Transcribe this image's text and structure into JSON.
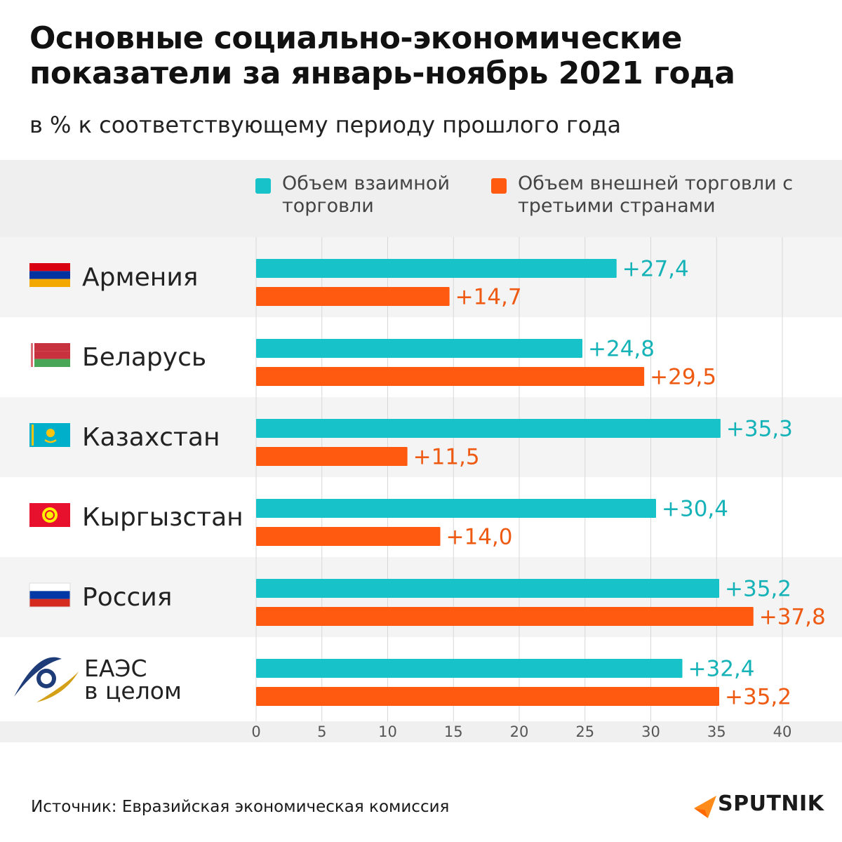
{
  "title": "Основные социально-экономические показатели за январь-ноябрь 2021 года",
  "subtitle": "в % к соответствующему периоду прошлого года",
  "legend": {
    "mutual": "Объем взаимной торговли",
    "external": "Объем внешней торговли с третьими странами"
  },
  "colors": {
    "mutual": "#17c3c8",
    "external": "#ff5a0f",
    "band_light": "#f4f4f4",
    "band_white": "#ffffff",
    "grid": "#d7d7d7"
  },
  "chart_data": {
    "type": "bar",
    "orientation": "horizontal",
    "categories": [
      "Армения",
      "Беларусь",
      "Казахстан",
      "Кыргызстан",
      "Россия",
      "ЕАЭС в целом"
    ],
    "series": [
      {
        "name": "Объем взаимной торговли",
        "values": [
          27.4,
          24.8,
          35.3,
          30.4,
          35.2,
          32.4
        ],
        "labels": [
          "+27,4",
          "+24,8",
          "+35,3",
          "+30,4",
          "+35,2",
          "+32,4"
        ]
      },
      {
        "name": "Объем внешней торговли с третьими странами",
        "values": [
          14.7,
          29.5,
          11.5,
          14.0,
          37.8,
          35.2
        ],
        "labels": [
          "+14,7",
          "+29,5",
          "+11,5",
          "+14,0",
          "+37,8",
          "+35,2"
        ]
      }
    ],
    "xlim": [
      0,
      40
    ],
    "xticks": [
      "0",
      "5",
      "10",
      "15",
      "20",
      "25",
      "30",
      "35",
      "40"
    ],
    "grid": true,
    "legend_position": "top"
  },
  "flags": [
    "armenia-flag",
    "belarus-flag",
    "kazakhstan-flag",
    "kyrgyzstan-flag",
    "russia-flag",
    "eaeu-logo"
  ],
  "source": "Источник: Евразийская экономическая комиссия",
  "logo": "SPUTNIK"
}
